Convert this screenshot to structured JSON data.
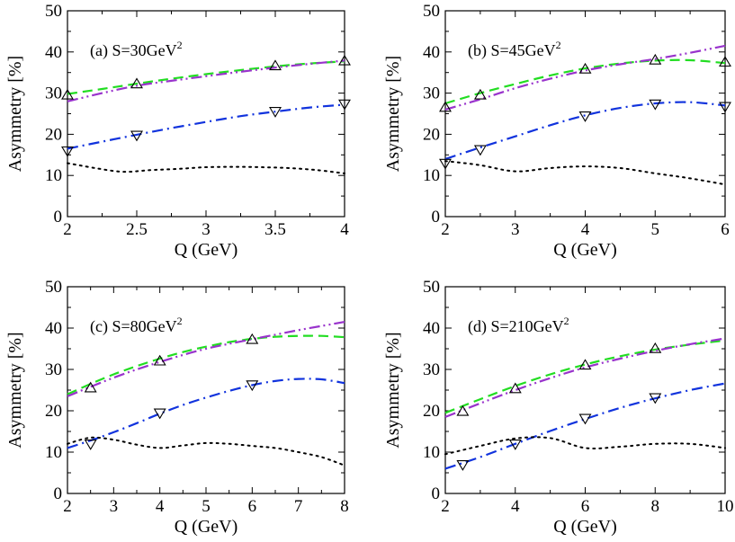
{
  "chart_data": [
    {
      "type": "line",
      "label": {
        "main": "(a) S=30GeV",
        "sup": "2"
      },
      "xlabel": "Q (GeV)",
      "ylabel": "Asymmetry [%]",
      "xlim": [
        2,
        4
      ],
      "ylim": [
        0,
        50
      ],
      "xticks": [
        2,
        2.5,
        3,
        3.5,
        4
      ],
      "xtick_labels": [
        "2",
        "2.5",
        "3",
        "3.5",
        "4"
      ],
      "yticks": [
        0,
        10,
        20,
        30,
        40,
        50
      ],
      "ytick_labels": [
        "0",
        "10",
        "20",
        "30",
        "40",
        "50"
      ],
      "series": [
        {
          "style": "dash",
          "color": "#22dd22",
          "x": [
            2,
            2.25,
            2.5,
            2.75,
            3,
            3.25,
            3.5,
            3.75,
            4
          ],
          "y": [
            29.8,
            31,
            32.3,
            33.5,
            34.6,
            35.6,
            36.5,
            37.2,
            37.7
          ]
        },
        {
          "style": "dashdotdot",
          "color": "#9933cc",
          "x": [
            2,
            2.25,
            2.5,
            2.75,
            3,
            3.25,
            3.5,
            3.75,
            4
          ],
          "y": [
            28,
            30,
            31.8,
            33,
            34.1,
            35.2,
            36.2,
            37.1,
            37.9
          ]
        },
        {
          "style": "dashdot",
          "color": "#1133dd",
          "x": [
            2,
            2.25,
            2.5,
            2.75,
            3,
            3.25,
            3.5,
            3.75,
            4
          ],
          "y": [
            16.5,
            18.2,
            19.9,
            21.5,
            23,
            24.4,
            25.5,
            26.5,
            27.2
          ]
        },
        {
          "style": "dot",
          "color": "#000000",
          "x": [
            2,
            2.2,
            2.4,
            2.6,
            2.8,
            3,
            3.2,
            3.4,
            3.6,
            3.8,
            4
          ],
          "y": [
            13,
            11.8,
            10.9,
            11.3,
            11.6,
            12,
            12.1,
            12,
            11.8,
            11.3,
            10.5
          ]
        },
        {
          "style": "marker-up",
          "color": "#000000",
          "x": [
            2,
            2.5,
            3.5,
            4
          ],
          "y": [
            29.5,
            32.2,
            36.6,
            37.8
          ]
        },
        {
          "style": "marker-down",
          "color": "#000000",
          "x": [
            2,
            2.5,
            3.5,
            4
          ],
          "y": [
            16,
            19.8,
            25.6,
            27.4
          ]
        }
      ]
    },
    {
      "type": "line",
      "label": {
        "main": "(b) S=45GeV",
        "sup": "2"
      },
      "xlabel": "Q (GeV)",
      "ylabel": "Asymmetry [%]",
      "xlim": [
        2,
        6
      ],
      "ylim": [
        0,
        50
      ],
      "xticks": [
        2,
        3,
        4,
        5,
        6
      ],
      "xtick_labels": [
        "2",
        "3",
        "4",
        "5",
        "6"
      ],
      "yticks": [
        0,
        10,
        20,
        30,
        40,
        50
      ],
      "ytick_labels": [
        "0",
        "10",
        "20",
        "30",
        "40",
        "50"
      ],
      "series": [
        {
          "style": "dash",
          "color": "#22dd22",
          "x": [
            2,
            2.5,
            3,
            3.5,
            4,
            4.5,
            5,
            5.5,
            6
          ],
          "y": [
            27.5,
            30,
            32.2,
            34.3,
            36,
            37.2,
            37.9,
            38,
            37.3
          ]
        },
        {
          "style": "dashdotdot",
          "color": "#9933cc",
          "x": [
            2,
            2.5,
            3,
            3.5,
            4,
            4.5,
            5,
            5.5,
            6
          ],
          "y": [
            26,
            28.5,
            31.2,
            33.5,
            35.5,
            37,
            38.3,
            39.8,
            41.5
          ]
        },
        {
          "style": "dashdot",
          "color": "#1133dd",
          "x": [
            2,
            2.5,
            3,
            3.5,
            4,
            4.5,
            5,
            5.5,
            6
          ],
          "y": [
            14,
            16.8,
            19.5,
            22.2,
            24.6,
            26.4,
            27.5,
            27.8,
            27
          ]
        },
        {
          "style": "dot",
          "color": "#000000",
          "x": [
            2,
            2.5,
            3,
            3.5,
            4,
            4.5,
            5,
            5.5,
            6
          ],
          "y": [
            13.5,
            12.5,
            11,
            11.8,
            12.2,
            11.8,
            10.5,
            9.3,
            7.8
          ]
        },
        {
          "style": "marker-up",
          "color": "#000000",
          "x": [
            2,
            2.5,
            4,
            5,
            6
          ],
          "y": [
            26.5,
            29.5,
            35.8,
            38,
            37.5
          ]
        },
        {
          "style": "marker-down",
          "color": "#000000",
          "x": [
            2,
            2.5,
            4,
            5,
            6
          ],
          "y": [
            13,
            16.3,
            24.5,
            27.4,
            26.8
          ]
        }
      ]
    },
    {
      "type": "line",
      "label": {
        "main": "(c) S=80GeV",
        "sup": "2"
      },
      "xlabel": "Q (GeV)",
      "ylabel": "Asymmetry [%]",
      "xlim": [
        2,
        8
      ],
      "ylim": [
        0,
        50
      ],
      "xticks": [
        2,
        3,
        4,
        5,
        6,
        7,
        8
      ],
      "xtick_labels": [
        "2",
        "3",
        "4",
        "5",
        "6",
        "7",
        "8"
      ],
      "yticks": [
        0,
        10,
        20,
        30,
        40,
        50
      ],
      "ytick_labels": [
        "0",
        "10",
        "20",
        "30",
        "40",
        "50"
      ],
      "series": [
        {
          "style": "dash",
          "color": "#22dd22",
          "x": [
            2,
            2.5,
            3,
            3.5,
            4,
            4.5,
            5,
            5.5,
            6,
            6.5,
            7,
            7.5,
            8
          ],
          "y": [
            24,
            26.5,
            28.8,
            30.8,
            32.6,
            34.2,
            35.5,
            36.6,
            37.4,
            37.9,
            38.1,
            38.1,
            37.8
          ]
        },
        {
          "style": "dashdotdot",
          "color": "#9933cc",
          "x": [
            2,
            2.5,
            3,
            3.5,
            4,
            4.5,
            5,
            5.5,
            6,
            6.5,
            7,
            7.5,
            8
          ],
          "y": [
            23.5,
            25.8,
            28,
            30,
            31.8,
            33.5,
            35,
            36.2,
            37.3,
            38.4,
            39.5,
            40.5,
            41.5
          ]
        },
        {
          "style": "dashdot",
          "color": "#1133dd",
          "x": [
            2,
            2.5,
            3,
            3.5,
            4,
            4.5,
            5,
            5.5,
            6,
            6.5,
            7,
            7.5,
            8
          ],
          "y": [
            11,
            12.8,
            14.8,
            17,
            19.3,
            21.4,
            23.2,
            24.8,
            26.2,
            27.2,
            27.7,
            27.6,
            26.7
          ]
        },
        {
          "style": "dot",
          "color": "#000000",
          "x": [
            2,
            2.5,
            3,
            3.5,
            4,
            4.5,
            5,
            5.5,
            6,
            6.5,
            7,
            7.5,
            8
          ],
          "y": [
            12,
            13.5,
            13,
            11.8,
            11,
            11.6,
            12.2,
            12,
            11.5,
            11,
            10,
            8.8,
            6.8
          ]
        },
        {
          "style": "marker-up",
          "color": "#000000",
          "x": [
            2.5,
            4,
            6
          ],
          "y": [
            25.5,
            32,
            37.2
          ]
        },
        {
          "style": "marker-down",
          "color": "#000000",
          "x": [
            2.5,
            4,
            6
          ],
          "y": [
            12,
            19.5,
            26.3
          ]
        }
      ]
    },
    {
      "type": "line",
      "label": {
        "main": "(d) S=210GeV",
        "sup": "2"
      },
      "xlabel": "Q (GeV)",
      "ylabel": "Asymmetry [%]",
      "xlim": [
        2,
        10
      ],
      "ylim": [
        0,
        50
      ],
      "xticks": [
        2,
        4,
        6,
        8,
        10
      ],
      "xtick_labels": [
        "2",
        "4",
        "6",
        "8",
        "10"
      ],
      "yticks": [
        0,
        10,
        20,
        30,
        40,
        50
      ],
      "ytick_labels": [
        "0",
        "10",
        "20",
        "30",
        "40",
        "50"
      ],
      "series": [
        {
          "style": "dash",
          "color": "#22dd22",
          "x": [
            2,
            3,
            4,
            5,
            6,
            7,
            8,
            9,
            10
          ],
          "y": [
            19.5,
            22.8,
            26,
            28.8,
            31.2,
            33.2,
            34.8,
            36,
            37
          ]
        },
        {
          "style": "dashdotdot",
          "color": "#9933cc",
          "x": [
            2,
            3,
            4,
            5,
            6,
            7,
            8,
            9,
            10
          ],
          "y": [
            18.5,
            21.8,
            25,
            27.9,
            30.5,
            32.6,
            34.5,
            36.1,
            37.5
          ]
        },
        {
          "style": "dashdot",
          "color": "#1133dd",
          "x": [
            2,
            3,
            4,
            5,
            6,
            7,
            8,
            9,
            10
          ],
          "y": [
            6,
            8.8,
            12,
            15.1,
            18,
            20.7,
            23,
            25,
            26.6
          ]
        },
        {
          "style": "dot",
          "color": "#000000",
          "x": [
            2,
            3,
            4,
            5,
            6,
            7,
            8,
            9,
            10
          ],
          "y": [
            9.5,
            11.5,
            13.3,
            13.4,
            11,
            11.3,
            12,
            12,
            11
          ]
        },
        {
          "style": "marker-up",
          "color": "#000000",
          "x": [
            2.5,
            4,
            6,
            8
          ],
          "y": [
            19.8,
            25.3,
            31,
            35
          ]
        },
        {
          "style": "marker-down",
          "color": "#000000",
          "x": [
            2.5,
            4,
            6,
            8
          ],
          "y": [
            7,
            12,
            18.2,
            23.2
          ]
        }
      ]
    }
  ]
}
